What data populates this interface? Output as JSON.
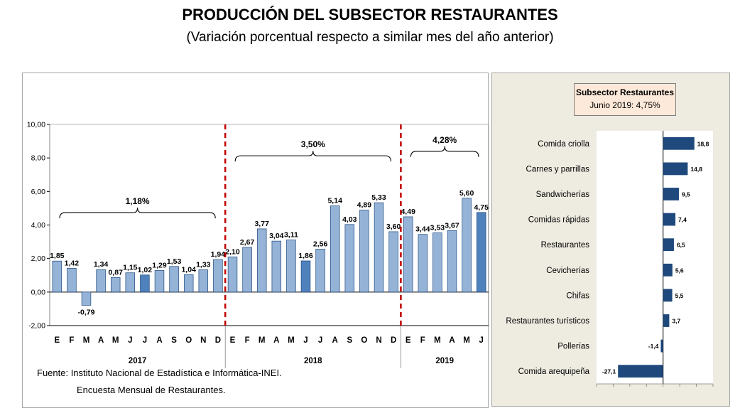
{
  "title": "PRODUCCIÓN DEL SUBSECTOR RESTAURANTES",
  "subtitle": "(Variación porcentual respecto a similar mes del año anterior)",
  "source": {
    "line1": "Fuente: Instituto Nacional de Estadística e Informática-INEI.",
    "line2": "Encuesta Mensual de  Restaurantes."
  },
  "colors": {
    "bar": "#95b3d7",
    "bar_highlight": "#4f81bd",
    "bar_edge": "#1f497d",
    "divider": "#c00000",
    "hbar": "#1f497d"
  },
  "chart_data": [
    {
      "type": "bar",
      "categories": [
        "E",
        "F",
        "M",
        "A",
        "M",
        "J",
        "J",
        "A",
        "S",
        "O",
        "N",
        "D",
        "E",
        "F",
        "M",
        "A",
        "M",
        "J",
        "J",
        "A",
        "S",
        "O",
        "N",
        "D",
        "E",
        "F",
        "M",
        "A",
        "M",
        "J"
      ],
      "values": [
        1.85,
        1.42,
        -0.79,
        1.34,
        0.87,
        1.15,
        1.02,
        1.29,
        1.53,
        1.04,
        1.33,
        1.94,
        2.1,
        2.67,
        3.77,
        3.04,
        3.11,
        1.86,
        2.56,
        5.14,
        4.03,
        4.89,
        5.33,
        3.6,
        4.49,
        3.44,
        3.53,
        3.67,
        5.6,
        4.75
      ],
      "value_labels": [
        "1,85",
        "1,42",
        "-0,79",
        "1,34",
        "0,87",
        "1,15",
        "1,02",
        "1,29",
        "1,53",
        "1,04",
        "1,33",
        "1,94",
        "2,10",
        "2,67",
        "3,77",
        "3,04",
        "3,11",
        "1,86",
        "2,56",
        "5,14",
        "4,03",
        "4,89",
        "5,33",
        "3,60",
        "4,49",
        "3,44",
        "3,53",
        "3,67",
        "5,60",
        "4,75"
      ],
      "highlight": [
        6,
        17,
        29
      ],
      "years": [
        {
          "label": "2017",
          "start": 0,
          "end": 11,
          "avg": "1,18%"
        },
        {
          "label": "2018",
          "start": 12,
          "end": 23,
          "avg": "3,50%"
        },
        {
          "label": "2019",
          "start": 24,
          "end": 29,
          "avg": "4,28%"
        }
      ],
      "ylim": [
        -2,
        10
      ],
      "yticks": [
        -2,
        0,
        2,
        4,
        6,
        8,
        10
      ],
      "ytick_labels": [
        "-2,00",
        "0,00",
        "2,00",
        "4,00",
        "6,00",
        "8,00",
        "10,00"
      ],
      "grid": false
    },
    {
      "type": "bar",
      "orientation": "horizontal",
      "legend_title": "Subsector Restaurantes",
      "legend_subtitle": "Junio 2019: 4,75%",
      "categories": [
        "Comida criolla",
        "Carnes y parrillas",
        "Sandwicherías",
        "Comidas rápidas",
        "Restaurantes",
        "Cevicherías",
        "Chifas",
        "Restaurantes turísticos",
        "Pollerías",
        "Comida arequipeña"
      ],
      "values": [
        18.8,
        14.8,
        9.5,
        7.4,
        6.5,
        5.6,
        5.5,
        3.7,
        -1.4,
        -27.1
      ],
      "value_labels": [
        "18,8",
        "14,8",
        "9,5",
        "7,4",
        "6,5",
        "5,6",
        "5,5",
        "3,7",
        "-1,4",
        "-27,1"
      ],
      "xlim": [
        -40,
        30
      ]
    }
  ]
}
